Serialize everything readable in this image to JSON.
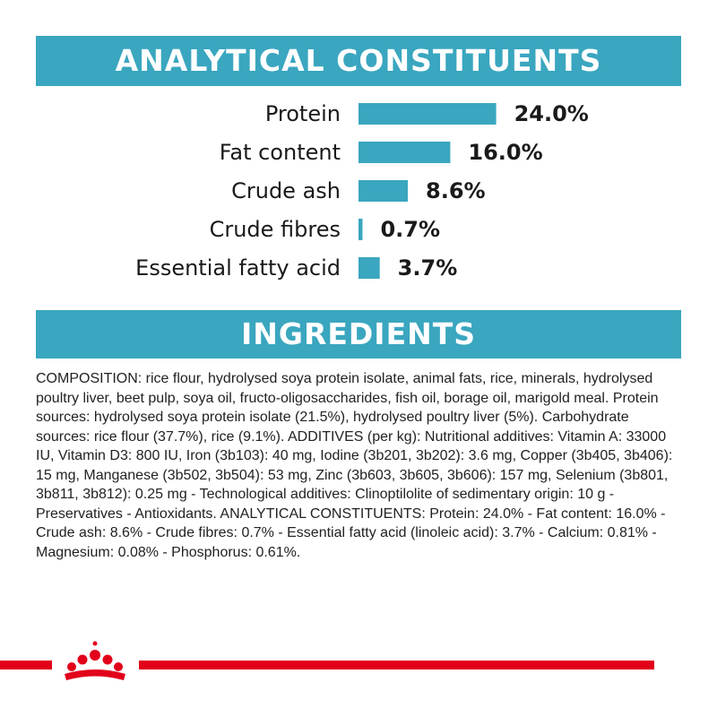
{
  "colors": {
    "accent": "#3aa6bf",
    "bar": "#3aa6bf",
    "brand_red": "#e2001a",
    "text": "#1a1a1a"
  },
  "analytical": {
    "title": "ANALYTICAL CONSTITUENTS"
  },
  "chart_data": {
    "type": "bar",
    "orientation": "horizontal",
    "title": "ANALYTICAL CONSTITUENTS",
    "categories": [
      "Protein",
      "Fat content",
      "Crude ash",
      "Crude fibres",
      "Essential fatty acid"
    ],
    "values": [
      24.0,
      16.0,
      8.6,
      0.7,
      3.7
    ],
    "value_labels": [
      "24.0%",
      "16.0%",
      "8.6%",
      "0.7%",
      "3.7%"
    ],
    "unit": "%",
    "grid": false
  },
  "ingredients": {
    "title": "INGREDIENTS",
    "text": "COMPOSITION: rice flour, hydrolysed soya protein isolate, animal fats, rice, minerals, hydrolysed poultry liver, beet pulp, soya oil, fructo-oligosaccharides, fish oil, borage oil, marigold meal. Protein sources: hydrolysed soya protein isolate (21.5%), hydrolysed poultry liver (5%). Carbohydrate sources: rice flour (37.7%), rice (9.1%). ADDITIVES (per kg): Nutritional additives: Vitamin A: 33000 IU, Vitamin D3: 800 IU, Iron (3b103): 40 mg, Iodine (3b201, 3b202): 3.6 mg, Copper (3b405, 3b406): 15 mg, Manganese (3b502, 3b504): 53 mg, Zinc (3b603, 3b605, 3b606): 157 mg, Selenium (3b801, 3b811, 3b812): 0.25 mg - Technological additives: Clinoptilolite of sedimentary origin: 10 g - Preservatives - Antioxidants. ANALYTICAL CONSTITUENTS: Protein: 24.0% - Fat content: 16.0% - Crude ash: 8.6% - Crude fibres: 0.7% - Essential fatty acid (linoleic acid): 3.7% - Calcium: 0.81% - Magnesium: 0.08% - Phosphorus: 0.61%."
  },
  "footer": {
    "logo_icon": "crown-icon"
  }
}
